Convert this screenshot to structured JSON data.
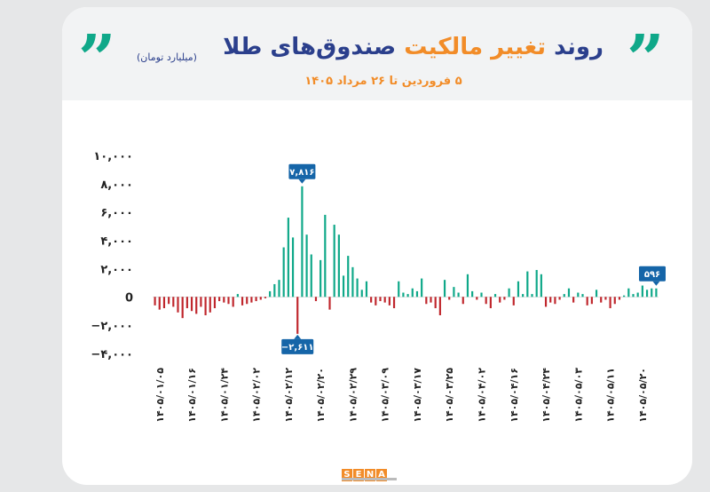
{
  "title": {
    "part1": "روند",
    "part2": "تغییر مالکیت",
    "part3": "صندوق‌های طلا",
    "unit": "(میلیارد تومان)",
    "subtitle": "۵ فروردین تا ۲۶ مرداد ۱۴۰۵",
    "quote_mark": "”"
  },
  "logo": {
    "letters": [
      "S",
      "E",
      "N",
      "A"
    ]
  },
  "colors": {
    "positive": "#0fa889",
    "negative": "#c0272d",
    "callout": "#1565a8",
    "title_blue": "#2b3f8c",
    "title_orange": "#f28c28"
  },
  "chart_data": {
    "type": "bar",
    "title": "روند تغییر مالکیت صندوق‌های طلا",
    "subtitle": "۵ فروردین تا ۲۶ مرداد ۱۴۰۵",
    "ylabel": "",
    "xlabel": "",
    "ylim": [
      -4000,
      10000
    ],
    "yticks": [
      10000,
      8000,
      6000,
      4000,
      2000,
      0,
      -2000,
      -4000
    ],
    "ytick_labels": [
      "۱۰,۰۰۰",
      "۸,۰۰۰",
      "۶,۰۰۰",
      "۴,۰۰۰",
      "۲,۰۰۰",
      "0",
      "−۲,۰۰۰",
      "−۴,۰۰۰"
    ],
    "xtick_labels": [
      "۱۴۰۵/۰۱/۰۵",
      "۱۴۰۵/۰۱/۱۶",
      "۱۴۰۵/۰۱/۲۴",
      "۱۴۰۵/۰۲/۰۲",
      "۱۴۰۵/۰۲/۱۲",
      "۱۴۰۵/۰۲/۲۰",
      "۱۴۰۵/۰۲/۲۹",
      "۱۴۰۵/۰۳/۰۹",
      "۱۴۰۵/۰۳/۱۷",
      "۱۴۰۵/۰۳/۲۵",
      "۱۴۰۵/۰۴/۰۲",
      "۱۴۰۵/۰۴/۱۶",
      "۱۴۰۵/۰۴/۲۴",
      "۱۴۰۵/۰۵/۰۳",
      "۱۴۰۵/۰۵/۱۱",
      "۱۴۰۵/۰۵/۲۰"
    ],
    "xtick_positions": [
      1,
      8,
      15,
      22,
      29,
      36,
      43,
      50,
      57,
      64,
      71,
      78,
      85,
      92,
      99,
      106
    ],
    "values": [
      -600,
      -900,
      -800,
      -500,
      -700,
      -1100,
      -1500,
      -800,
      -1000,
      -1200,
      -700,
      -1300,
      -1100,
      -800,
      -300,
      -400,
      -500,
      -700,
      200,
      -600,
      -500,
      -400,
      -300,
      -200,
      -100,
      400,
      900,
      1200,
      3500,
      5600,
      4200,
      -2611,
      7816,
      4400,
      3000,
      -300,
      2600,
      5800,
      -900,
      5100,
      4400,
      1500,
      2900,
      2100,
      1300,
      500,
      1100,
      -400,
      -600,
      -300,
      -400,
      -600,
      -800,
      1100,
      300,
      200,
      600,
      400,
      1300,
      -500,
      -400,
      -800,
      -1300,
      1200,
      -200,
      700,
      300,
      -500,
      1600,
      400,
      -200,
      300,
      -500,
      -800,
      200,
      -400,
      -200,
      600,
      -600,
      1100,
      200,
      1800,
      200,
      1900,
      1600,
      -700,
      -400,
      -500,
      -200,
      200,
      600,
      -400,
      300,
      200,
      -600,
      -500,
      500,
      -400,
      -200,
      -800,
      -500,
      -200,
      100,
      600,
      200,
      300,
      800,
      500,
      600,
      596
    ],
    "callouts": [
      {
        "label": "۷,۸۱۶",
        "value": 7816,
        "index": 32
      },
      {
        "label": "−۲,۶۱۱",
        "value": -2611,
        "index": 31
      },
      {
        "label": "۵۹۶",
        "value": 596,
        "index": 109
      }
    ],
    "grid": false,
    "legend": "none"
  }
}
